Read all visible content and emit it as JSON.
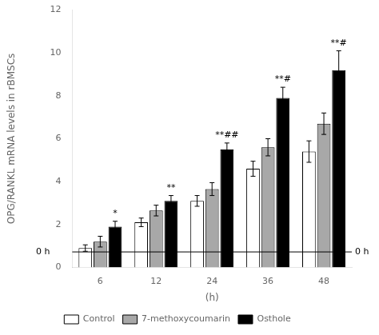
{
  "chart_data": {
    "type": "bar",
    "categories": [
      "6",
      "12",
      "24",
      "36",
      "48"
    ],
    "series": [
      {
        "name": "Control",
        "color": "white",
        "values": [
          0.9,
          2.1,
          3.1,
          4.6,
          5.4
        ],
        "errors": [
          0.15,
          0.2,
          0.25,
          0.35,
          0.5
        ]
      },
      {
        "name": "7-methoxycoumarin",
        "color": "#a8a8a8",
        "values": [
          1.2,
          2.65,
          3.65,
          5.6,
          6.7
        ],
        "errors": [
          0.25,
          0.25,
          0.3,
          0.4,
          0.5
        ]
      },
      {
        "name": "Osthole",
        "color": "black",
        "values": [
          1.9,
          3.1,
          5.5,
          7.9,
          9.2
        ],
        "errors": [
          0.25,
          0.25,
          0.3,
          0.5,
          0.9
        ]
      }
    ],
    "xlabel": "(h)",
    "ylabel": "OPG/RANKL mRNA levels in rBMSCs",
    "ylim": [
      0,
      12
    ],
    "yticks": [
      0,
      2,
      4,
      6,
      8,
      10,
      12
    ],
    "grid": false,
    "legend": "bottom",
    "hlines": [
      {
        "y": 0.72,
        "label": "0 h",
        "color": "black"
      }
    ],
    "annotations": [
      {
        "category": "6",
        "series": "Osthole",
        "text": "*"
      },
      {
        "category": "12",
        "series": "Osthole",
        "text": "**"
      },
      {
        "category": "24",
        "series": "Osthole",
        "text": "**##"
      },
      {
        "category": "36",
        "series": "Osthole",
        "text": "**#"
      },
      {
        "category": "48",
        "series": "Osthole",
        "text": "**#"
      }
    ]
  }
}
